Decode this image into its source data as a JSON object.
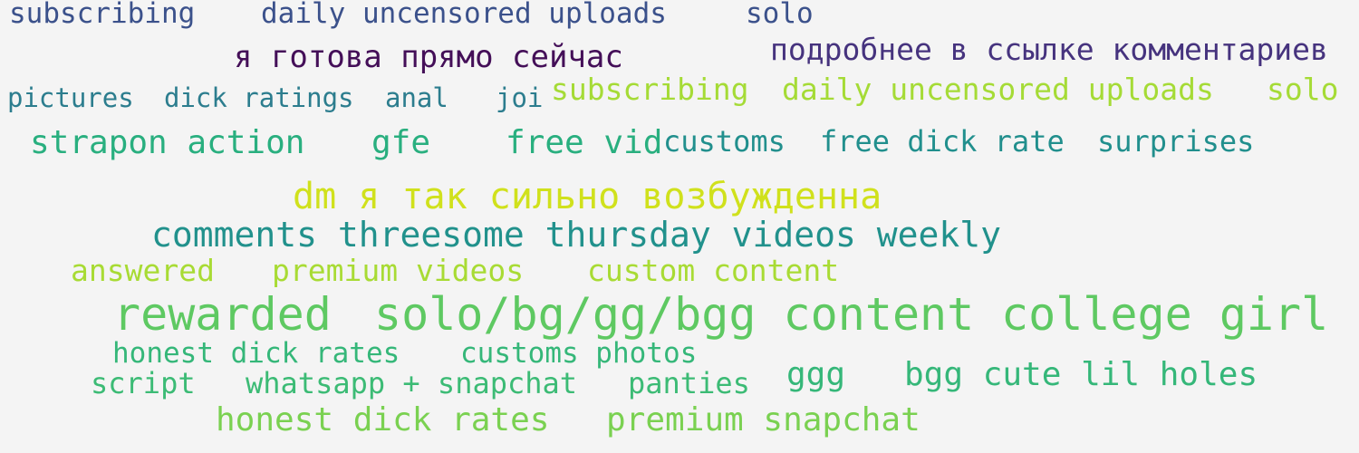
{
  "words": [
    {
      "text": "subscribing",
      "color": "#3b518b"
    },
    {
      "text": "daily uncensored uploads",
      "color": "#3b518b"
    },
    {
      "text": "solo",
      "color": "#3b518b"
    },
    {
      "text": "я готова прямо сейчас",
      "color": "#440f58"
    },
    {
      "text": "подробнее в ссылке комментариев",
      "color": "#46337e"
    },
    {
      "text": "pictures",
      "color": "#2c7d8e"
    },
    {
      "text": "dick ratings",
      "color": "#2c7d8e"
    },
    {
      "text": "anal",
      "color": "#2c7d8e"
    },
    {
      "text": "joi",
      "color": "#2c7d8e"
    },
    {
      "text": "subscribing",
      "color": "#a5db36"
    },
    {
      "text": "daily uncensored uploads",
      "color": "#a5db36"
    },
    {
      "text": "solo",
      "color": "#a5db36"
    },
    {
      "text": "strapon action",
      "color": "#29af7f"
    },
    {
      "text": "gfe",
      "color": "#29af7f"
    },
    {
      "text": "free vid",
      "color": "#29af7f"
    },
    {
      "text": "customs",
      "color": "#218f8d"
    },
    {
      "text": "free dick rate",
      "color": "#218f8d"
    },
    {
      "text": "surprises",
      "color": "#218f8d"
    },
    {
      "text": "dm я так сильно возбужденна",
      "color": "#d0e11c"
    },
    {
      "text": "comments threesome thursday videos weekly",
      "color": "#21918c"
    },
    {
      "text": "answered",
      "color": "#a8db34"
    },
    {
      "text": "premium videos",
      "color": "#a8db34"
    },
    {
      "text": "custom content",
      "color": "#a8db34"
    },
    {
      "text": "rewarded",
      "color": "#5ec962"
    },
    {
      "text": "solo/bg/gg/bgg content",
      "color": "#5ec962"
    },
    {
      "text": "college girl",
      "color": "#5ec962"
    },
    {
      "text": "honest dick rates",
      "color": "#35b779"
    },
    {
      "text": "customs photos",
      "color": "#35b779"
    },
    {
      "text": "script",
      "color": "#3cbb75"
    },
    {
      "text": "whatsapp + snapchat",
      "color": "#3cbb75"
    },
    {
      "text": "panties",
      "color": "#3cbb75"
    },
    {
      "text": "ggg",
      "color": "#35b779"
    },
    {
      "text": "bgg cute lil holes",
      "color": "#35b779"
    },
    {
      "text": "honest dick rates",
      "color": "#7ad151"
    },
    {
      "text": "premium snapchat",
      "color": "#7ad151"
    }
  ]
}
